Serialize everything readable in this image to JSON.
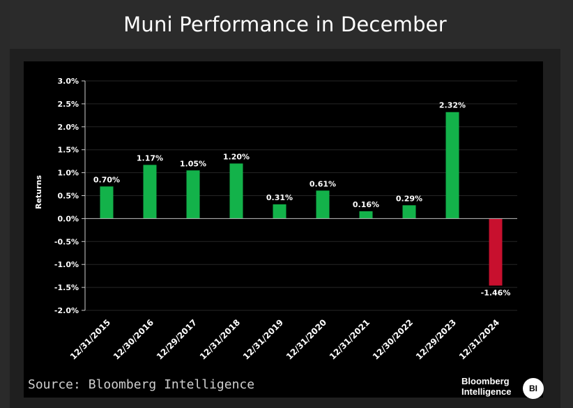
{
  "title": "Muni Performance in December",
  "source": "Source: Bloomberg Intelligence",
  "brand": {
    "line1": "Bloomberg",
    "line2": "Intelligence",
    "badge": "BI"
  },
  "colors": {
    "positive": "#13b24a",
    "negative": "#c8102e",
    "background": "#000000",
    "grid": "#262626"
  },
  "chart_data": {
    "type": "bar",
    "ylabel": "Returns",
    "xlabel": "",
    "ylim": [
      -2.0,
      3.0
    ],
    "ystep": 0.5,
    "grid": true,
    "yticks": [
      "3.0%",
      "2.5%",
      "2.0%",
      "1.5%",
      "1.0%",
      "0.5%",
      "0.0%",
      "-0.5%",
      "-1.0%",
      "-1.5%",
      "-2.0%"
    ],
    "categories": [
      "12/31/2015",
      "12/30/2016",
      "12/29/2017",
      "12/31/2018",
      "12/31/2019",
      "12/31/2020",
      "12/31/2021",
      "12/30/2022",
      "12/29/2023",
      "12/31/2024"
    ],
    "values": [
      0.7,
      1.17,
      1.05,
      1.2,
      0.31,
      0.61,
      0.16,
      0.29,
      2.32,
      -1.46
    ],
    "data_labels": [
      "0.70%",
      "1.17%",
      "1.05%",
      "1.20%",
      "0.31%",
      "0.61%",
      "0.16%",
      "0.29%",
      "2.32%",
      "-1.46%"
    ]
  }
}
